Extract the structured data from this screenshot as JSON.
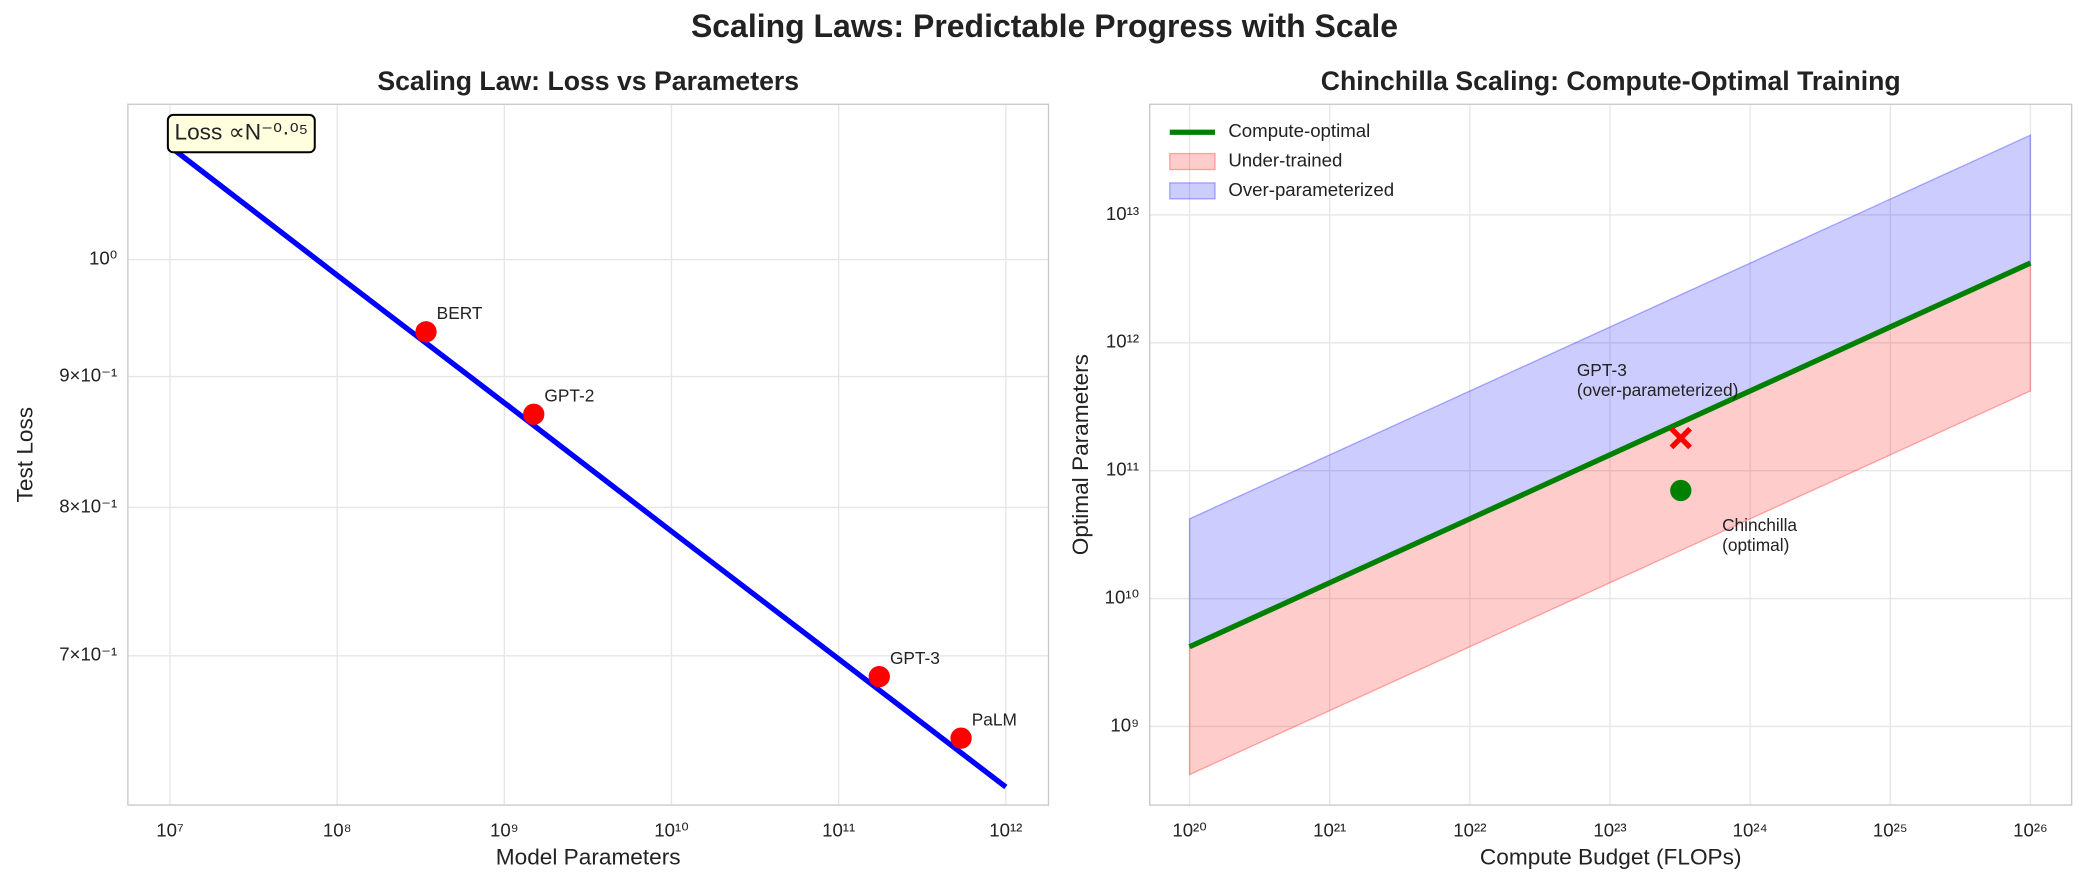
{
  "title": "Scaling Laws: Predictable Progress with Scale",
  "chart_data": [
    {
      "type": "line",
      "title": "Scaling Law: Loss vs Parameters",
      "xlabel": "Model Parameters",
      "ylabel": "Test Loss",
      "xscale": "log",
      "yscale": "log",
      "grid": true,
      "xlim": [
        5600000,
        1800000000000
      ],
      "ylim": [
        0.612,
        1.15
      ],
      "xticks": [
        {
          "value": 10000000,
          "label": "10⁷"
        },
        {
          "value": 100000000,
          "label": "10⁸"
        },
        {
          "value": 1000000000,
          "label": "10⁹"
        },
        {
          "value": 10000000000,
          "label": "10¹⁰"
        },
        {
          "value": 100000000000,
          "label": "10¹¹"
        },
        {
          "value": 1000000000000,
          "label": "10¹²"
        }
      ],
      "yticks": [
        {
          "value": 1,
          "label": "10⁰"
        },
        {
          "value": 0.9,
          "label": "9×10⁻¹"
        },
        {
          "value": 0.8,
          "label": "8×10⁻¹"
        },
        {
          "value": 0.7,
          "label": "7×10⁻¹"
        }
      ],
      "annotation": "Loss ∝N⁻⁰·⁰⁵",
      "x": [
        10000000,
        100000000,
        1000000000,
        10000000000,
        100000000000,
        1000000000000
      ],
      "series": [
        {
          "color": "#0000ff",
          "values": [
            1.107,
            0.986,
            0.879,
            0.783,
            0.698,
            0.622
          ]
        }
      ],
      "points": [
        {
          "label": [
            "BERT"
          ],
          "x": 340000000,
          "value": 0.937,
          "marker": "o",
          "color": "#ff0000"
        },
        {
          "label": [
            "GPT-2"
          ],
          "x": 1500000000,
          "value": 0.87,
          "marker": "o",
          "color": "#ff0000"
        },
        {
          "label": [
            "GPT-3"
          ],
          "x": 175000000000,
          "value": 0.687,
          "marker": "o",
          "color": "#ff0000"
        },
        {
          "label": [
            "PaLM"
          ],
          "x": 540000000000,
          "value": 0.65,
          "marker": "o",
          "color": "#ff0000"
        }
      ]
    },
    {
      "type": "line",
      "title": "Chinchilla Scaling: Compute-Optimal Training",
      "xlabel": "Compute Budget (FLOPs)",
      "ylabel": "Optimal Parameters",
      "xscale": "log",
      "yscale": "log",
      "grid": true,
      "legend": "upper left",
      "xlim": [
        5.2e+19,
        1.97e+26
      ],
      "ylim": [
        243000000,
        73300000000000
      ],
      "xticks": [
        {
          "value": 1e+20,
          "label": "10²⁰"
        },
        {
          "value": 1e+21,
          "label": "10²¹"
        },
        {
          "value": 1e+22,
          "label": "10²²"
        },
        {
          "value": 1e+23,
          "label": "10²³"
        },
        {
          "value": 1e+24,
          "label": "10²⁴"
        },
        {
          "value": 1e+25,
          "label": "10²⁵"
        },
        {
          "value": 1e+26,
          "label": "10²⁶"
        }
      ],
      "yticks": [
        {
          "value": 1000000000,
          "label": "10⁹"
        },
        {
          "value": 10000000000,
          "label": "10¹⁰"
        },
        {
          "value": 100000000000,
          "label": "10¹¹"
        },
        {
          "value": 1000000000000,
          "label": "10¹²"
        },
        {
          "value": 10000000000000,
          "label": "10¹³"
        }
      ],
      "x": [
        1e+20,
        1e+21,
        1e+22,
        1e+23,
        1e+24,
        1e+25,
        1e+26
      ],
      "series": [
        {
          "name": "Compute-optimal",
          "color": "#008000",
          "values": [
            4200000000,
            13300000000,
            42000000000,
            133000000000,
            420000000000,
            1330000000000,
            4200000000000
          ]
        }
      ],
      "bands": [
        {
          "name": "Under-trained",
          "color": "#ff0000",
          "lower": [
            420000000,
            1330000000,
            4200000000,
            13300000000,
            42000000000,
            133000000000,
            420000000000
          ],
          "upper": [
            4200000000,
            13300000000,
            42000000000,
            133000000000,
            420000000000,
            1330000000000,
            4200000000000
          ]
        },
        {
          "name": "Over-parameterized",
          "color": "#0000ff",
          "lower": [
            4200000000,
            13300000000,
            42000000000,
            133000000000,
            420000000000,
            1330000000000,
            4200000000000
          ],
          "upper": [
            42000000000,
            133000000000,
            420000000000,
            1330000000000,
            4200000000000,
            13300000000000,
            42000000000000
          ]
        }
      ],
      "points": [
        {
          "label": [
            "GPT-3",
            "(over-parameterized)"
          ],
          "x": 3.2e+23,
          "value": 180000000000,
          "marker": "x",
          "color": "#ff0000"
        },
        {
          "label": [
            "Chinchilla",
            "(optimal)"
          ],
          "x": 3.2e+23,
          "value": 70000000000,
          "marker": "o",
          "color": "#008000"
        }
      ]
    }
  ]
}
